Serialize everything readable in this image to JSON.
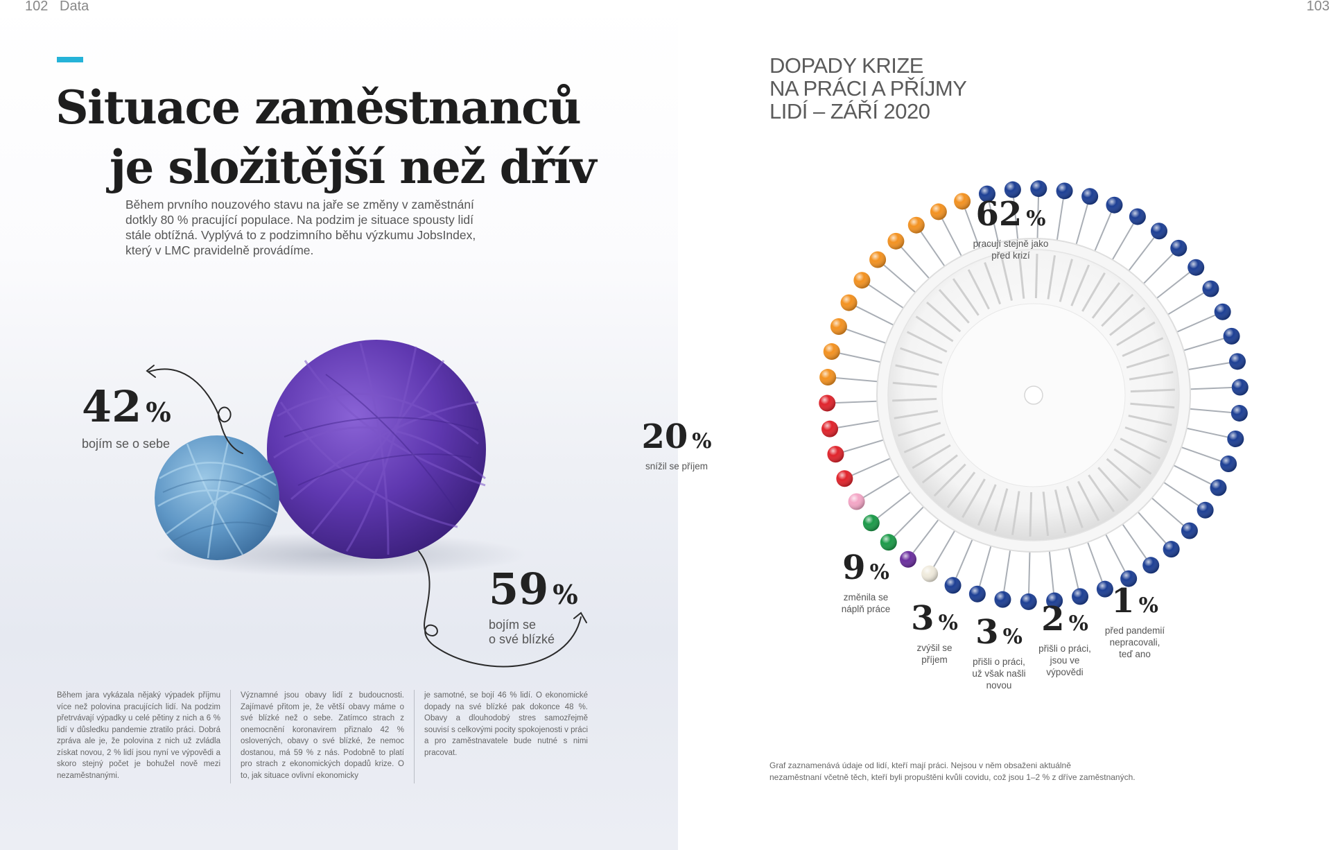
{
  "left_page": {
    "page_number": "102",
    "section": "Data",
    "headline": {
      "line1": "Situace zaměstnanců",
      "line2": "je složitější než dřív"
    },
    "intro": "Během prvního nouzového stavu na jaře se změny v zaměstnání dotkly 80 % pracující populace. Na podzim je situace spousty lidí stále obtížná. Vyplývá to z podzimního běhu výzkumu JobsIndex, který v LMC pravidelně provádíme.",
    "stat_self": {
      "value": "42",
      "unit": "%",
      "label": "bojím se o sebe"
    },
    "stat_close": {
      "value": "59",
      "unit": "%",
      "label_line1": "bojím se",
      "label_line2": "o své blízké"
    },
    "body_columns": [
      "Během jara vykázala nějaký výpadek příjmu více než polovina pracujících lidí. Na podzim přetrvávají výpadky u celé pětiny z nich a 6 % lidí v důsledku pandemie ztratilo práci. Dobrá zpráva ale je, že polovina z nich už zvládla získat novou, 2 % lidí jsou nyní ve výpovědi a skoro stejný počet je bohužel nově mezi nezaměstnanými.",
      "Významné jsou obavy lidí z budoucnosti. Zajímavé přitom je, že větší obavy máme o své blízké než o sebe. Zatímco strach z onemocnění koronavirem přiznalo 42 % oslovených, obavy o své blízké, že nemoc dostanou, má 59 % z nás. Podobně to platí pro strach z ekonomických dopadů krize. O to, jak situace ovlivní ekonomicky",
      "je samotné, se bojí 46 % lidí. O ekonomické dopady na své blízké pak dokonce 48 %. Obavy a dlouhodobý stres samozřejmě souvisí s celkovými pocity spokojenosti v práci a pro zaměstnavatele bude nutné s nimi pracovat."
    ]
  },
  "right_page": {
    "page_number": "103",
    "chart_title": {
      "line1": "DOPADY KRIZE",
      "line2": "NA PRÁCI A PŘÍJMY",
      "line3": "LIDÍ – ZÁŘÍ 2020"
    },
    "footnote": {
      "line1": "Graf zaznamenává údaje od lidí, kteří mají práci. Nejsou v něm obsaženi aktuálně",
      "line2": "nezaměstnaní včetně těch, kteří byli propuštěni kvůli covidu, což jsou 1–2 % z dříve zaměstnaných."
    }
  },
  "chart_data": {
    "type": "pie",
    "title": "DOPADY KRIZE NA PRÁCI A PŘÍJMY LIDÍ – ZÁŘÍ 2020",
    "unit": "%",
    "slices": [
      {
        "value": 62,
        "label": "pracují stejně jako před krizí",
        "label_lines": [
          "pracují stejně jako",
          "před krizí"
        ],
        "color": "#1d3f94"
      },
      {
        "value": 1,
        "label": "před pandemií nepracovali, teď ano",
        "label_lines": [
          "před pandemií",
          "nepracovali,",
          "teď ano"
        ],
        "color": "#efeadc"
      },
      {
        "value": 2,
        "label": "přišli o práci, jsou ve výpovědi",
        "label_lines": [
          "přišli o práci,",
          "jsou ve",
          "výpovědi"
        ],
        "color": "#6b2f9e"
      },
      {
        "value": 3,
        "label": "přišli o práci, už však našli novou",
        "label_lines": [
          "přišli o práci,",
          "už však našli",
          "novou"
        ],
        "color": "#1c9a49"
      },
      {
        "value": 3,
        "label": "zvýšil se příjem",
        "label_lines": [
          "zvýšil se",
          "příjem"
        ],
        "color": "#f4a6c6"
      },
      {
        "value": 9,
        "label": "změnila se náplň práce",
        "label_lines": [
          "změnila se",
          "náplň práce"
        ],
        "color": "#e0242c"
      },
      {
        "value": 20,
        "label": "snížil se příjem",
        "label_lines": [
          "snížil se příjem"
        ],
        "color": "#f39221"
      }
    ]
  }
}
